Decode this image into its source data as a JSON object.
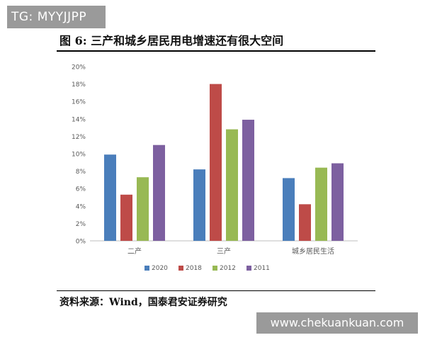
{
  "watermark_top": "TG: MYYJJPP",
  "figure_title": "图 6: 三产和城乡居民用电增速还有很大空间",
  "source_text": "资料来源：Wind，国泰君安证券研究",
  "watermark_bottom": "www.chekuankuan.com",
  "colors": {
    "2020": "#4a7ebb",
    "2018": "#be4b48",
    "2012": "#98b954",
    "2011": "#7d60a0"
  },
  "chart_data": {
    "type": "bar",
    "categories": [
      "二产",
      "三产",
      "城乡居民生活"
    ],
    "series": [
      {
        "name": "2020",
        "values": [
          9.9,
          8.2,
          7.2
        ]
      },
      {
        "name": "2018",
        "values": [
          5.3,
          18.0,
          4.2
        ]
      },
      {
        "name": "2012",
        "values": [
          7.3,
          12.8,
          8.4
        ]
      },
      {
        "name": "2011",
        "values": [
          11.0,
          13.9,
          8.9
        ]
      }
    ],
    "yticks": [
      "0%",
      "2%",
      "4%",
      "6%",
      "8%",
      "10%",
      "12%",
      "14%",
      "16%",
      "18%",
      "20%"
    ],
    "ylim": [
      0,
      20
    ],
    "legend_position": "bottom",
    "grid": false
  }
}
